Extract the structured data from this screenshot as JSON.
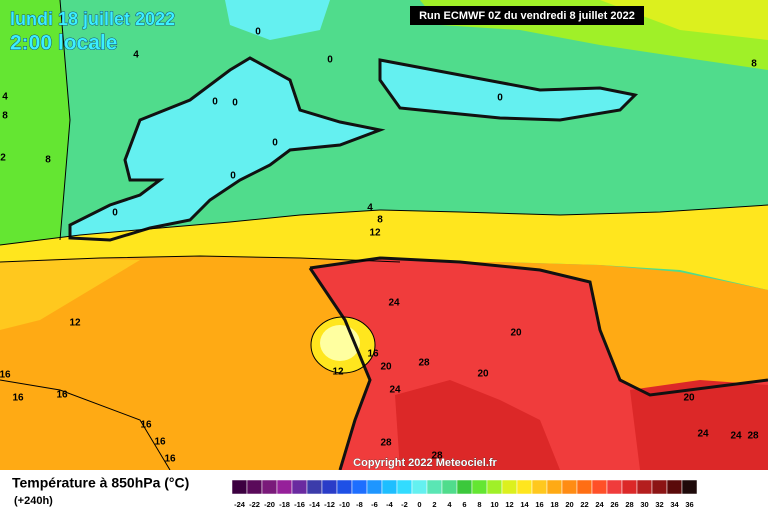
{
  "header": {
    "date": "lundi 18 juillet 2022",
    "time": "2:00 locale",
    "run": "Run ECMWF 0Z du vendredi 8 juillet 2022"
  },
  "copyright": "Copyright 2022 Meteociel.fr",
  "footer": {
    "title": "Température à 850hPa (°C)",
    "lead": "(+240h)"
  },
  "scale": {
    "labels": [
      -24,
      -22,
      -20,
      -18,
      -16,
      -14,
      -12,
      -10,
      -8,
      -6,
      -4,
      -2,
      0,
      2,
      4,
      6,
      8,
      10,
      12,
      14,
      16,
      18,
      20,
      22,
      24,
      26,
      28,
      30,
      32,
      34,
      36
    ],
    "colors": [
      "#3c0040",
      "#5a0a5a",
      "#7a1a7a",
      "#96209a",
      "#6a2aa0",
      "#3c3caa",
      "#2a3cc8",
      "#1e50e6",
      "#1e6eff",
      "#1e96ff",
      "#1ebeff",
      "#32dcff",
      "#64f0f0",
      "#5ae6b4",
      "#50dc8c",
      "#3cc83c",
      "#64e632",
      "#a0f028",
      "#dcf01e",
      "#ffe61e",
      "#ffc81e",
      "#ffaa14",
      "#ff8c14",
      "#ff6e14",
      "#ff5028",
      "#f03c3c",
      "#dc2828",
      "#b41e1e",
      "#8c1414",
      "#5a0a0a",
      "#1e0a0a"
    ]
  },
  "contour_labels": [
    0,
    0,
    0,
    0,
    0,
    0,
    0,
    0,
    4,
    4,
    4,
    8,
    8,
    8,
    8,
    12,
    12,
    12,
    16,
    16,
    16,
    16,
    16,
    16,
    16,
    20,
    20,
    20,
    20,
    24,
    24,
    24,
    24,
    28,
    28,
    28,
    28,
    2
  ]
}
